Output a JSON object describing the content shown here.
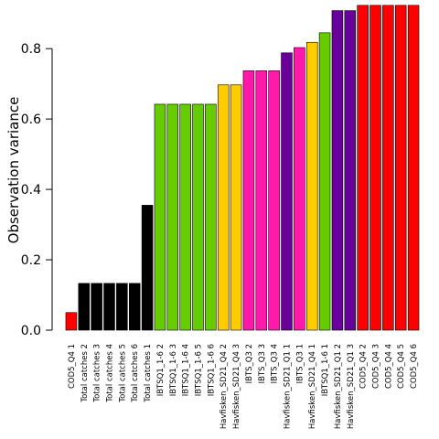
{
  "chart_data": {
    "type": "bar",
    "ylabel": "Observation variance",
    "xlabel": "",
    "ylim": [
      0,
      0.92
    ],
    "yticks": [
      0.0,
      0.2,
      0.4,
      0.6,
      0.8
    ],
    "ytick_labels": [
      "0.0",
      "0.2",
      "0.4",
      "0.6",
      "0.8"
    ],
    "grid": false,
    "colors": {
      "red": "#ff0000",
      "black": "#000000",
      "green": "#66cc00",
      "yellow": "#ffcc00",
      "magenta": "#ff1aaa",
      "purple": "#660099"
    },
    "categories": [
      "COD5_Q4 1",
      "Total catches 2",
      "Total catches 3",
      "Total catches 4",
      "Total catches 5",
      "Total catches 6",
      "Total catches 1",
      "IBTSQ1_1-6 2",
      "IBTSQ1_1-6 3",
      "IBTSQ1_1-6 4",
      "IBTSQ1_1-6 5",
      "IBTSQ1_1-6 6",
      "Havfisken_SD21_Q4 2",
      "Havfisken_SD21_Q4 3",
      "IBTS_Q3 2",
      "IBTS_Q3 3",
      "IBTS_Q3 4",
      "Havfisken_SD21_Q1 1",
      "IBTS_Q3 1",
      "Havfisken_SD21_Q4 1",
      "IBTSQ1_1-6 1",
      "Havfisken_SD21_Q1 2",
      "Havfisken_SD21_Q1 3",
      "COD5_Q4 2",
      "COD5_Q4 3",
      "COD5_Q4 4",
      "COD5_Q4 5",
      "COD5_Q4 6"
    ],
    "values": [
      0.05,
      0.133,
      0.133,
      0.133,
      0.133,
      0.133,
      0.355,
      0.642,
      0.642,
      0.642,
      0.642,
      0.642,
      0.697,
      0.697,
      0.737,
      0.737,
      0.737,
      0.788,
      0.803,
      0.818,
      0.845,
      0.908,
      0.908,
      0.923,
      0.923,
      0.923,
      0.923,
      0.923
    ],
    "bar_colors": [
      "red",
      "black",
      "black",
      "black",
      "black",
      "black",
      "black",
      "green",
      "green",
      "green",
      "green",
      "green",
      "yellow",
      "yellow",
      "magenta",
      "magenta",
      "magenta",
      "purple",
      "magenta",
      "yellow",
      "green",
      "purple",
      "purple",
      "red",
      "red",
      "red",
      "red",
      "red"
    ]
  }
}
